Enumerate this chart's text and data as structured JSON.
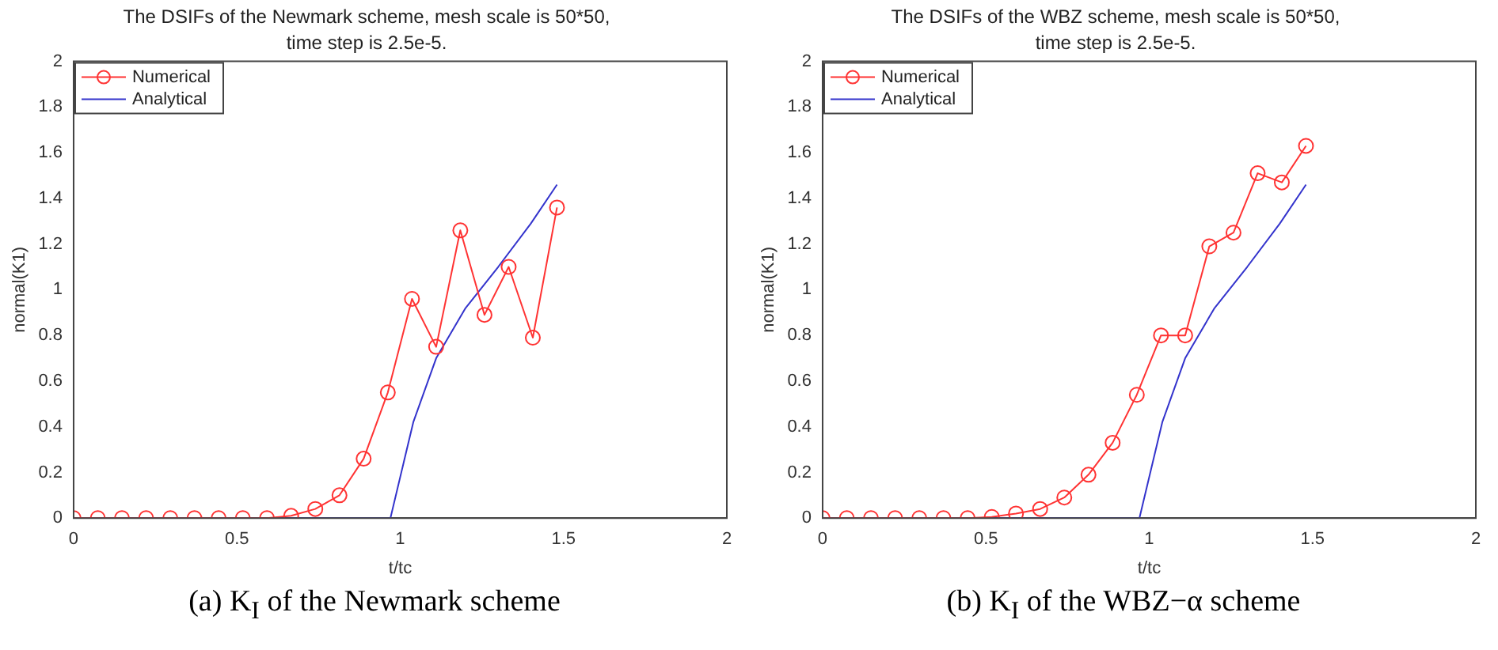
{
  "chart_data": [
    {
      "type": "line",
      "title": "The DSIFs of the Newmark scheme, mesh scale is 50*50,",
      "subtitle": "time step is 2.5e-5.",
      "xlabel": "t/tc",
      "ylabel": "normal(K1)",
      "annotations": [
        "(a) K$_{I}$ of the Newmark scheme"
      ],
      "xlim": [
        0,
        2
      ],
      "xticks": [
        0,
        0.5,
        1,
        1.5,
        2
      ],
      "ylim": [
        0,
        2
      ],
      "yticks": [
        0,
        0.2,
        0.4,
        0.6,
        0.8,
        1,
        1.2,
        1.4,
        1.6,
        1.8,
        2
      ],
      "grid": false,
      "legend": "top left",
      "series": [
        {
          "name": "Numerical",
          "color": "#ff3333",
          "marker": "circle",
          "x": [
            0,
            0.074,
            0.148,
            0.222,
            0.296,
            0.37,
            0.444,
            0.518,
            0.592,
            0.666,
            0.74,
            0.814,
            0.888,
            0.962,
            1.036,
            1.11,
            1.184,
            1.258,
            1.332,
            1.406,
            1.48
          ],
          "values": [
            0,
            0,
            0,
            0,
            0,
            0,
            0,
            0,
            0,
            0.01,
            0.04,
            0.1,
            0.26,
            0.55,
            0.96,
            0.75,
            1.26,
            0.89,
            1.1,
            0.79,
            1.36
          ]
        },
        {
          "name": "Analytical",
          "color": "#3333cc",
          "marker": "none",
          "x": [
            0,
            0.97,
            1.04,
            1.11,
            1.2,
            1.3,
            1.4,
            1.48
          ],
          "values": [
            0,
            0,
            0.42,
            0.7,
            0.92,
            1.1,
            1.29,
            1.46
          ]
        }
      ]
    },
    {
      "type": "line",
      "title": "The DSIFs of the WBZ scheme, mesh scale is 50*50,",
      "subtitle": "time step is 2.5e-5.",
      "xlabel": "t/tc",
      "ylabel": "normal(K1)",
      "annotations": [
        "(b) K$_{I}$ of the WBZ−α scheme"
      ],
      "xlim": [
        0,
        2
      ],
      "xticks": [
        0,
        0.5,
        1,
        1.5,
        2
      ],
      "ylim": [
        0,
        2
      ],
      "yticks": [
        0,
        0.2,
        0.4,
        0.6,
        0.8,
        1,
        1.2,
        1.4,
        1.6,
        1.8,
        2
      ],
      "grid": false,
      "legend": "top left",
      "series": [
        {
          "name": "Numerical",
          "color": "#ff3333",
          "marker": "circle",
          "x": [
            0,
            0.074,
            0.148,
            0.222,
            0.296,
            0.37,
            0.444,
            0.518,
            0.592,
            0.666,
            0.74,
            0.814,
            0.888,
            0.962,
            1.036,
            1.11,
            1.184,
            1.258,
            1.332,
            1.406,
            1.48
          ],
          "values": [
            0,
            0,
            0,
            0,
            0,
            0,
            0,
            0.005,
            0.02,
            0.04,
            0.09,
            0.19,
            0.33,
            0.54,
            0.8,
            0.8,
            1.19,
            1.25,
            1.51,
            1.47,
            1.63
          ]
        },
        {
          "name": "Analytical",
          "color": "#3333cc",
          "marker": "none",
          "x": [
            0,
            0.97,
            1.04,
            1.11,
            1.2,
            1.3,
            1.4,
            1.48
          ],
          "values": [
            0,
            0,
            0.42,
            0.7,
            0.92,
            1.1,
            1.29,
            1.46
          ]
        }
      ]
    }
  ]
}
